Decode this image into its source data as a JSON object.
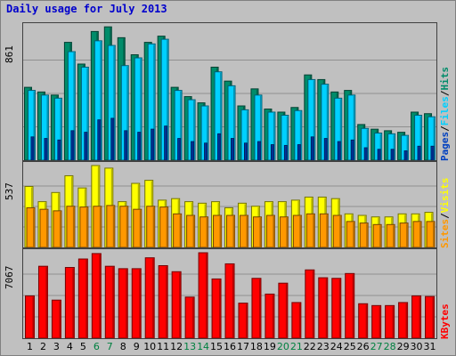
{
  "chart_data": {
    "type": "bar",
    "title": "Daily usage for July 2013",
    "categories": [
      "1",
      "2",
      "3",
      "4",
      "5",
      "6",
      "7",
      "8",
      "9",
      "10",
      "11",
      "12",
      "13",
      "14",
      "15",
      "16",
      "17",
      "18",
      "19",
      "20",
      "21",
      "22",
      "23",
      "24",
      "25",
      "26",
      "27",
      "28",
      "29",
      "30",
      "31"
    ],
    "weekend_days": [
      "6",
      "7",
      "13",
      "14",
      "20",
      "21",
      "27",
      "28"
    ],
    "panels": [
      {
        "max_label": "861",
        "ymax": 861,
        "series": [
          {
            "name": "Hits",
            "color": "#008c6a",
            "values": [
              470,
              440,
              420,
              760,
              620,
              830,
              860,
              790,
              680,
              760,
              800,
              470,
              410,
              370,
              600,
              510,
              350,
              460,
              330,
              310,
              340,
              550,
              520,
              440,
              450,
              230,
              200,
              190,
              180,
              310,
              300
            ]
          },
          {
            "name": "Files",
            "color": "#00d0ff",
            "values": [
              450,
              420,
              400,
              700,
              600,
              770,
              740,
              610,
              660,
              750,
              780,
              450,
              390,
              350,
              570,
              480,
              325,
              420,
              310,
              290,
              320,
              520,
              490,
              400,
              420,
              205,
              175,
              170,
              160,
              290,
              280
            ]
          },
          {
            "name": "Pages",
            "color": "#0040c0",
            "values": [
              150,
              140,
              130,
              190,
              180,
              260,
              270,
              190,
              180,
              200,
              220,
              140,
              120,
              110,
              170,
              140,
              110,
              120,
              100,
              95,
              100,
              150,
              140,
              120,
              130,
              80,
              70,
              70,
              60,
              90,
              90
            ]
          }
        ],
        "legend": [
          "Pages",
          "Files",
          "Hits"
        ],
        "separators": [
          "/",
          "/"
        ]
      },
      {
        "max_label": "537",
        "ymax": 537,
        "series": [
          {
            "name": "Visits",
            "color": "#ffff00",
            "values": [
              400,
              300,
              360,
              470,
              390,
              537,
              520,
              300,
              420,
              440,
              310,
              320,
              300,
              290,
              300,
              260,
              290,
              270,
              300,
              300,
              310,
              330,
              330,
              320,
              220,
              210,
              200,
              200,
              220,
              220,
              230
            ]
          },
          {
            "name": "Sites",
            "color": "#ff9800",
            "values": [
              260,
              250,
              240,
              270,
              265,
              270,
              275,
              270,
              250,
              270,
              265,
              220,
              210,
              200,
              210,
              210,
              210,
              200,
              210,
              200,
              210,
              220,
              220,
              210,
              170,
              160,
              150,
              150,
              160,
              170,
              170
            ]
          }
        ],
        "legend": [
          "Sites",
          "Visits"
        ],
        "separators": [
          "/"
        ]
      },
      {
        "max_label": "7067",
        "ymax": 7067,
        "series": [
          {
            "name": "KBytes",
            "color": "#ff0000",
            "values": [
              3500,
              5950,
              3150,
              5850,
              6550,
              7000,
              5950,
              5750,
              5750,
              6650,
              6000,
              5500,
              3400,
              7067,
              4900,
              6150,
              2900,
              4950,
              3650,
              4550,
              2950,
              5650,
              5000,
              4950,
              5350,
              2850,
              2700,
              2700,
              2950,
              3500,
              3450
            ]
          }
        ],
        "legend": [
          "KBytes"
        ],
        "separators": []
      }
    ]
  },
  "colors": {
    "background": "#c0c0c0",
    "title": "#0000cc",
    "weekday_label": "#000000",
    "weekend_label": "#008040",
    "gridline": "#909090"
  }
}
